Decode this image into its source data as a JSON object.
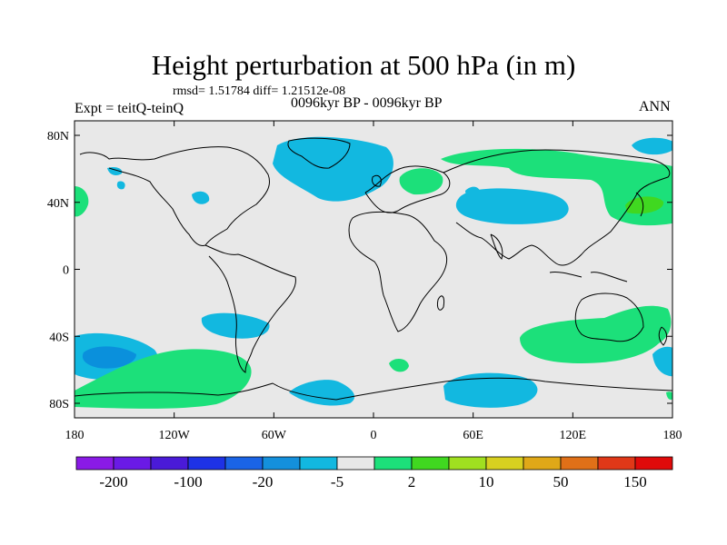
{
  "title": "Height perturbation at 500 hPa (in m)",
  "stats": "rmsd= 1.51784 diff= 1.21512e-08",
  "left_label": "Expt = teitQ-teinQ",
  "center_label": "0096kyr BP - 0096kyr BP",
  "right_label": "ANN",
  "colors": {
    "background_land_ocean": "#e8e8e8",
    "coast": "#000000",
    "light_blue": "#12b8e0",
    "mid_blue": "#0a90dc",
    "light_green": "#1ce07a",
    "mid_green": "#40d820"
  },
  "map": {
    "lat_ticks": [
      "80N",
      "40N",
      "0",
      "40S",
      "80S"
    ],
    "lon_ticks": [
      "180",
      "120W",
      "60W",
      "0",
      "60E",
      "120E",
      "180"
    ]
  },
  "colorbar": {
    "colors": [
      "#8a1ae6",
      "#6a1ae6",
      "#4a1ad8",
      "#1e32e6",
      "#1a64e6",
      "#1490dc",
      "#12b8e0",
      "#e8e8e8",
      "#1ce07a",
      "#40d820",
      "#a0e020",
      "#d8d020",
      "#e0a818",
      "#e07018",
      "#e03818",
      "#e00a0a"
    ],
    "labels": [
      "-200",
      "-100",
      "-20",
      "-5",
      "2",
      "10",
      "50",
      "150"
    ]
  }
}
